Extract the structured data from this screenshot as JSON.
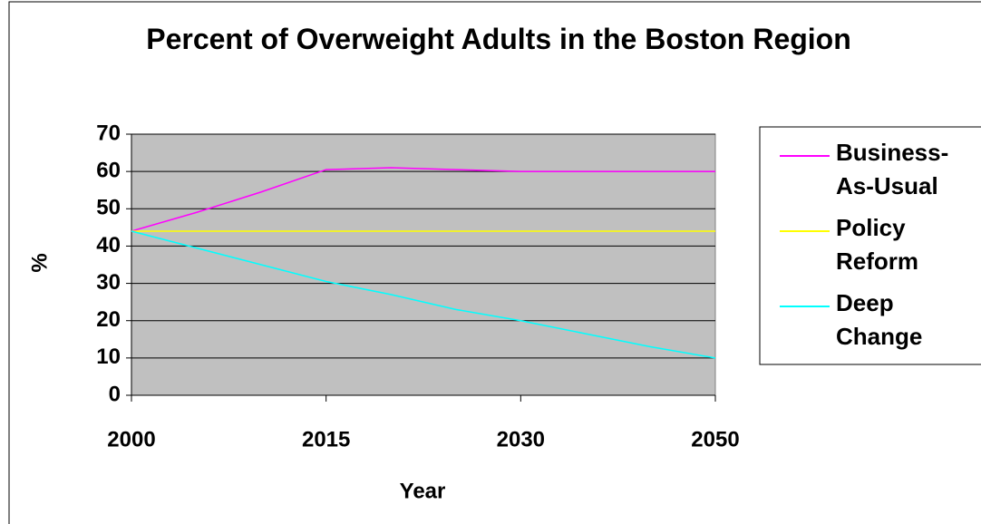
{
  "chart_data": {
    "type": "line",
    "title": "Percent of Overweight Adults in the Boston Region",
    "xlabel": "Year",
    "ylabel": "%",
    "categories": [
      "2000",
      null,
      null,
      "2015",
      null,
      null,
      "2030",
      null,
      null,
      "2050"
    ],
    "series": [
      {
        "name": "Business-As-Usual",
        "color": "#ff00ff",
        "values": [
          44,
          49,
          54.5,
          60.5,
          61,
          60.5,
          60,
          60,
          60,
          60
        ]
      },
      {
        "name": "Policy Reform",
        "color": "#ffff00",
        "values": [
          44,
          44,
          44,
          44,
          44,
          44,
          44,
          44,
          44,
          44
        ]
      },
      {
        "name": "Deep Change",
        "color": "#00ffff",
        "values": [
          44,
          39.5,
          35,
          30.5,
          27,
          23,
          20,
          16.5,
          13,
          10
        ]
      }
    ],
    "ylim": [
      0,
      70
    ],
    "yticks": [
      0,
      10,
      20,
      30,
      40,
      50,
      60,
      70
    ],
    "grid": true,
    "legend": "right"
  }
}
